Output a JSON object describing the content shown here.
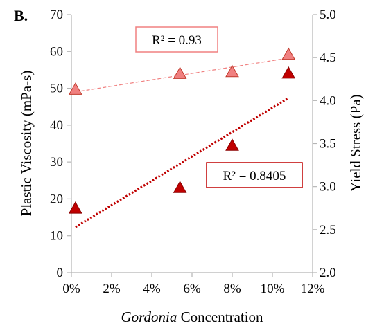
{
  "panel_label": "B.",
  "chart_data": {
    "type": "scatter",
    "xlabel_italic": "Gordonia",
    "xlabel_rest": " Concentration",
    "ylabel_left": "Plastic Viscosity (mPa-s)",
    "ylabel_right": "Yield Stress (Pa)",
    "xlim": [
      0,
      0.12
    ],
    "ylim_left": [
      0,
      70
    ],
    "ylim_right": [
      2.0,
      5.0
    ],
    "x_ticks": [
      0,
      0.02,
      0.04,
      0.06,
      0.08,
      0.1,
      0.12
    ],
    "x_tick_labels": [
      "0%",
      "2%",
      "4%",
      "6%",
      "8%",
      "10%",
      "12%"
    ],
    "y_left_ticks": [
      0,
      10,
      20,
      30,
      40,
      50,
      60,
      70
    ],
    "y_left_tick_labels": [
      "0",
      "10",
      "20",
      "30",
      "40",
      "50",
      "60",
      "70"
    ],
    "y_right_ticks": [
      2.0,
      2.5,
      3.0,
      3.5,
      4.0,
      4.5,
      5.0
    ],
    "y_right_tick_labels": [
      "2.0",
      "2.5",
      "3.0",
      "3.5",
      "4.0",
      "4.5",
      "5.0"
    ],
    "grid": false,
    "series": [
      {
        "axis": "left",
        "marker": "triangle",
        "color": "#f08080",
        "edge_color": "#c0392b",
        "trendline": {
          "style": "dashed",
          "color": "#f08080",
          "r2": "R² = 0.93",
          "start": [
            0.002,
            49.0
          ],
          "end": [
            0.108,
            58.2
          ]
        },
        "x": [
          0.002,
          0.054,
          0.08,
          0.108
        ],
        "y": [
          49.5,
          53.8,
          54.3,
          59.0
        ]
      },
      {
        "axis": "right",
        "marker": "triangle",
        "color": "#c00000",
        "edge_color": "#8b0000",
        "trendline": {
          "style": "dotted",
          "color": "#c00000",
          "r2": "R² = 0.8405",
          "start": [
            0.002,
            2.53
          ],
          "end": [
            0.108,
            4.03
          ]
        },
        "x": [
          0.002,
          0.054,
          0.08,
          0.108
        ],
        "y": [
          2.74,
          2.98,
          3.47,
          4.31
        ]
      }
    ]
  }
}
